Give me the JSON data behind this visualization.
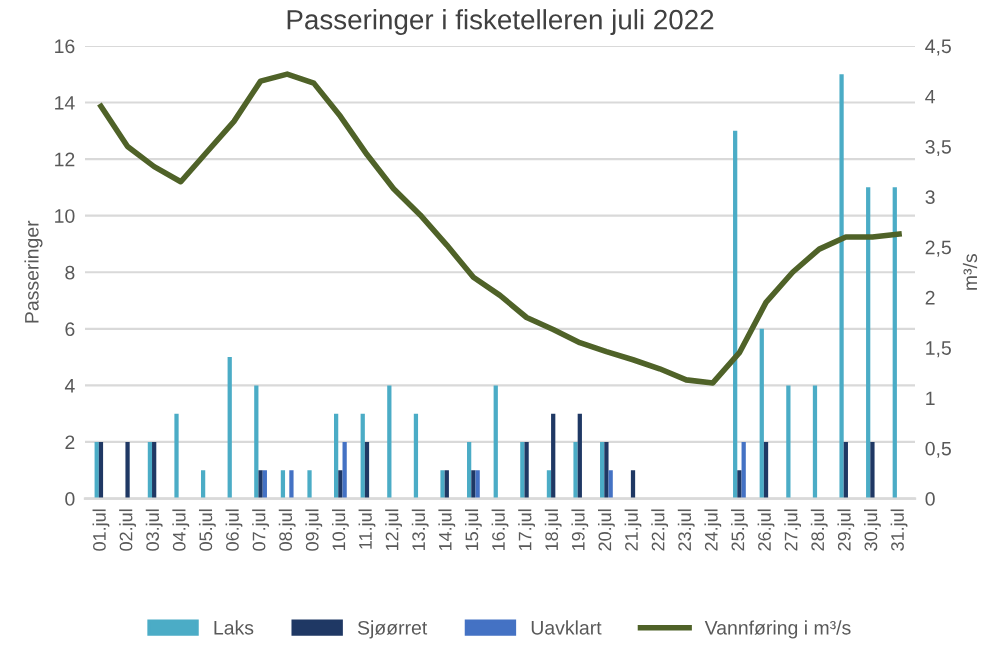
{
  "chart_data": {
    "type": "bar",
    "title": "Passeringer i fisketelleren juli 2022",
    "ylabel": "Passeringer",
    "y2label": "m³/s",
    "categories": [
      "01.jul",
      "02.jul",
      "03.jul",
      "04.jul",
      "05.jul",
      "06.jul",
      "07.jul",
      "08.jul",
      "09.jul",
      "10.jul",
      "11.jul",
      "12.jul",
      "13.jul",
      "14.jul",
      "15.jul",
      "16.jul",
      "17.jul",
      "18.jul",
      "19.jul",
      "20.jul",
      "21.jul",
      "22.jul",
      "23.jul",
      "24.jul",
      "25.jul",
      "26.jul",
      "27.jul",
      "28.jul",
      "29.jul",
      "30.jul",
      "31.jul"
    ],
    "series": [
      {
        "name": "Laks",
        "color": "#4bacc6",
        "values": [
          2,
          0,
          2,
          3,
          1,
          5,
          4,
          1,
          1,
          3,
          3,
          4,
          3,
          1,
          2,
          4,
          2,
          1,
          2,
          2,
          0,
          0,
          0,
          0,
          13,
          6,
          4,
          4,
          15,
          11,
          11
        ]
      },
      {
        "name": "Sjøørret",
        "color": "#1f3864",
        "values": [
          2,
          2,
          2,
          0,
          0,
          0,
          1,
          0,
          0,
          1,
          2,
          0,
          0,
          1,
          1,
          0,
          2,
          3,
          3,
          2,
          1,
          0,
          0,
          0,
          1,
          2,
          0,
          0,
          2,
          2,
          0
        ]
      },
      {
        "name": "Uavklart",
        "color": "#4472c4",
        "values": [
          0,
          0,
          0,
          0,
          0,
          0,
          1,
          1,
          0,
          2,
          0,
          0,
          0,
          0,
          1,
          0,
          0,
          0,
          0,
          1,
          0,
          0,
          0,
          0,
          2,
          0,
          0,
          0,
          0,
          0,
          0
        ]
      },
      {
        "name": "Vannføring i m³/s",
        "type": "line",
        "axis": "y2",
        "color": "#4f6228",
        "values": [
          3.9,
          3.5,
          3.3,
          3.15,
          3.45,
          3.75,
          4.15,
          4.22,
          4.13,
          3.8,
          3.42,
          3.08,
          2.82,
          2.52,
          2.2,
          2.02,
          1.8,
          1.68,
          1.55,
          1.46,
          1.38,
          1.29,
          1.18,
          1.15,
          1.45,
          1.95,
          2.25,
          2.48,
          2.6,
          2.6,
          2.63
        ]
      }
    ],
    "ylim": [
      0,
      16
    ],
    "yticks": [
      0,
      2,
      4,
      6,
      8,
      10,
      12,
      14,
      16
    ],
    "y2lim": [
      0,
      4.5
    ],
    "y2ticks": [
      0,
      {
        "value": 0.5,
        "label": "0,5"
      },
      1,
      {
        "value": 1.5,
        "label": "1,5"
      },
      2,
      {
        "value": 2.5,
        "label": "2,5"
      },
      3,
      {
        "value": 3.5,
        "label": "3,5"
      },
      4,
      {
        "value": 4.5,
        "label": "4,5"
      }
    ],
    "grid": "y",
    "legend": "bottom"
  }
}
